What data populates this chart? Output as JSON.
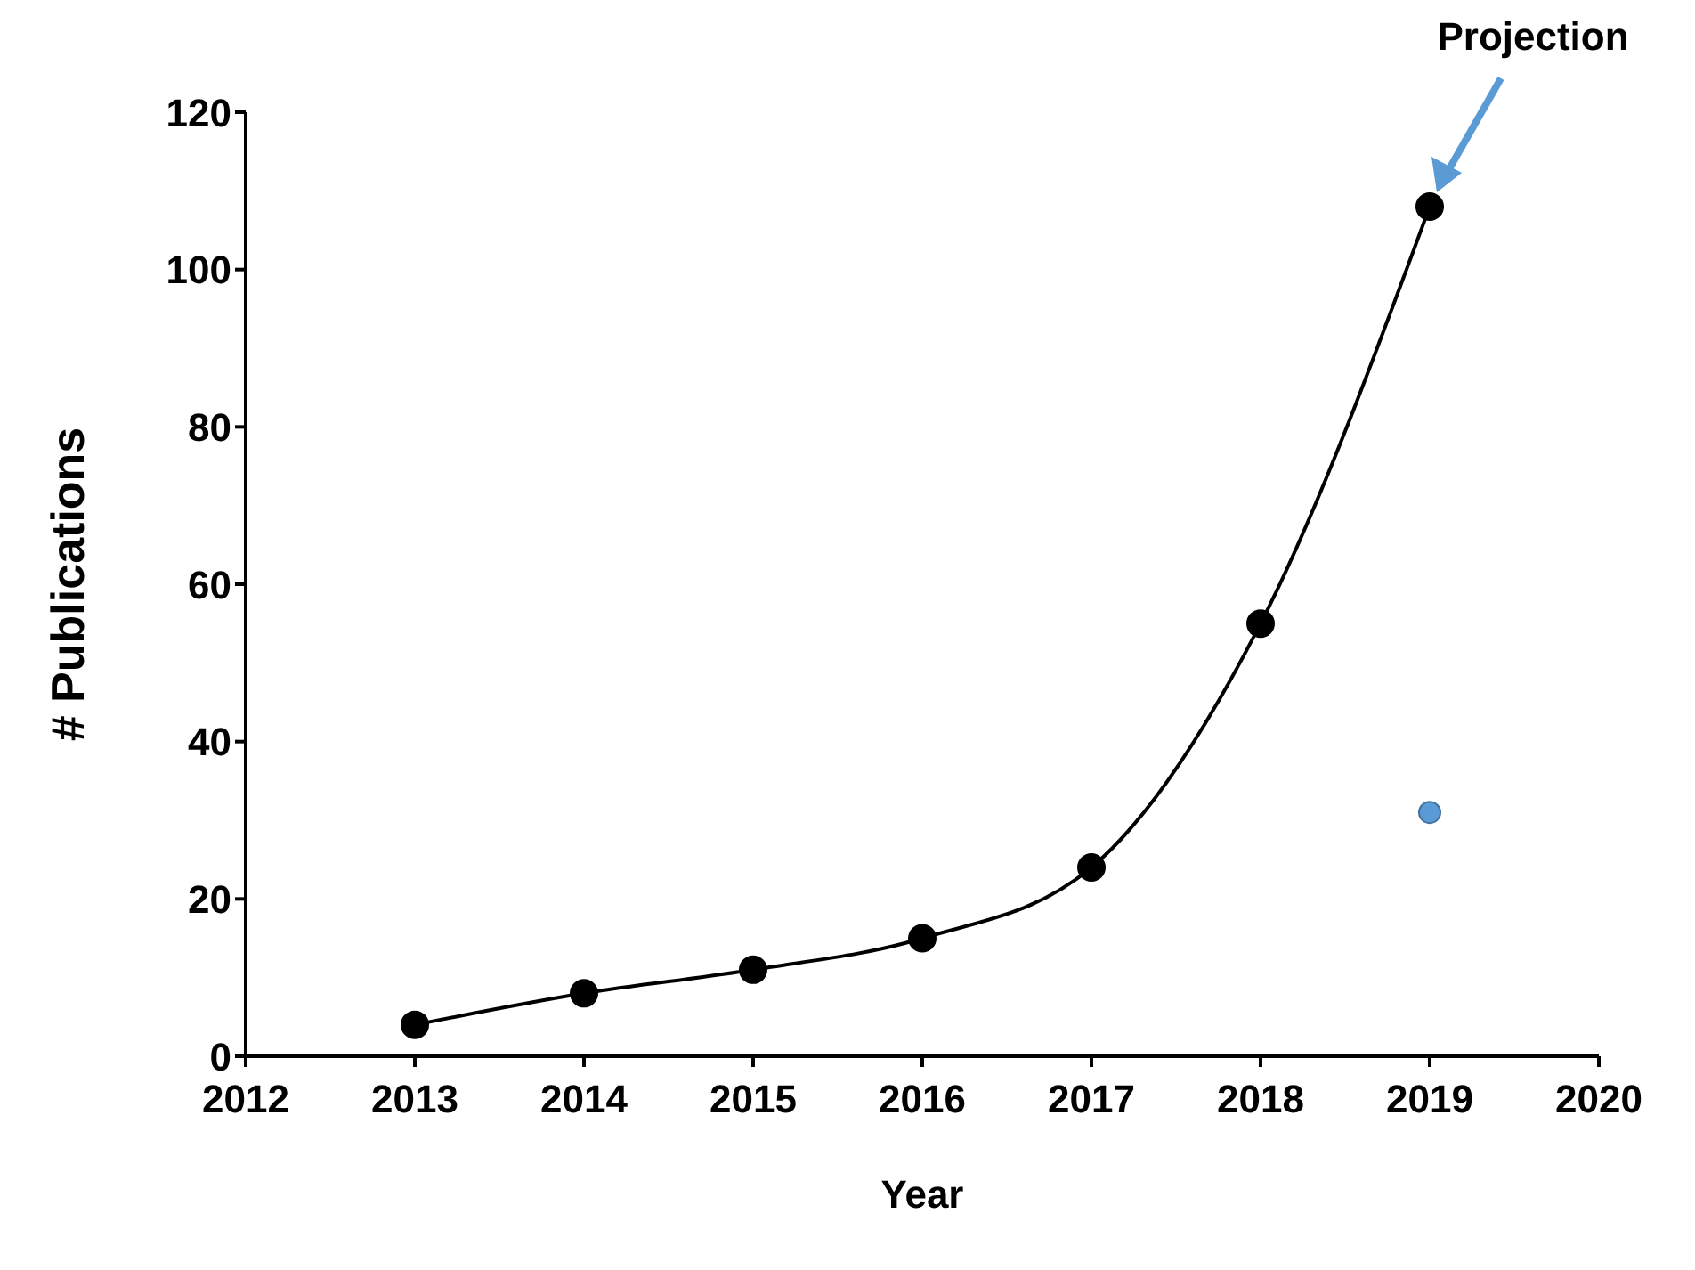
{
  "chart_data": {
    "type": "line",
    "xlabel": "Year",
    "ylabel": "# Publications",
    "x": [
      2013,
      2014,
      2015,
      2016,
      2017,
      2018,
      2019
    ],
    "series": [
      {
        "color": "#000000",
        "values": [
          4,
          8,
          11,
          15,
          24,
          55,
          108
        ]
      },
      {
        "type": "scatter",
        "color": "#5b9bd5",
        "x": [
          2019
        ],
        "values": [
          31
        ]
      }
    ],
    "xlim": [
      2012,
      2020
    ],
    "xticks": [
      2012,
      2013,
      2014,
      2015,
      2016,
      2017,
      2018,
      2019,
      2020
    ],
    "ylim": [
      0,
      120
    ],
    "yticks": [
      0,
      20,
      40,
      60,
      80,
      100,
      120
    ],
    "annotations": [
      "Projection"
    ],
    "grid": false,
    "legend": false,
    "marker": "circle",
    "line_style": "solid"
  }
}
